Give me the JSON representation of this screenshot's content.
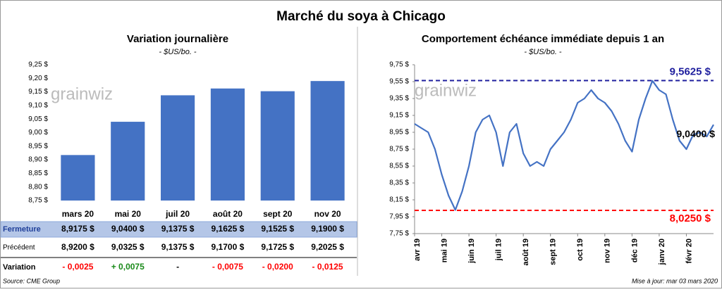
{
  "title": "Marché du soya à Chicago",
  "source": "Source: CME Group",
  "updated": "Mise à jour: mar 03 mars 2020",
  "chart_data": [
    {
      "type": "bar",
      "title": "Variation journalière",
      "subtitle": "- $US/bo. -",
      "watermark": "grainwiz",
      "categories": [
        "mars 20",
        "mai 20",
        "juil 20",
        "août 20",
        "sept 20",
        "nov 20"
      ],
      "values": [
        8.9175,
        9.04,
        9.1375,
        9.1625,
        9.1525,
        9.19
      ],
      "value_labels": [
        "8,9175 $",
        "9,0400 $",
        "9,1375 $",
        "9,1625 $",
        "9,1525 $",
        "9,1900 $"
      ],
      "color": "#4472c4",
      "ylim": [
        8.75,
        9.25
      ],
      "yticks": [
        {
          "value": 8.75,
          "label": "8,75 $"
        },
        {
          "value": 8.8,
          "label": "8,80 $"
        },
        {
          "value": 8.85,
          "label": "8,85 $"
        },
        {
          "value": 8.9,
          "label": "8,90 $"
        },
        {
          "value": 8.95,
          "label": "8,95 $"
        },
        {
          "value": 9.0,
          "label": "9,00 $"
        },
        {
          "value": 9.05,
          "label": "9,05 $"
        },
        {
          "value": 9.1,
          "label": "9,10 $"
        },
        {
          "value": 9.15,
          "label": "9,15 $"
        },
        {
          "value": 9.2,
          "label": "9,20 $"
        },
        {
          "value": 9.25,
          "label": "9,25 $"
        }
      ],
      "grid": false
    },
    {
      "type": "line",
      "title": "Comportement  échéance immédiate depuis 1 an",
      "subtitle": "- $US/bo. -",
      "watermark": "grainwiz",
      "categories": [
        "avr 19",
        null,
        null,
        null,
        "mai 19",
        null,
        null,
        null,
        "juin 19",
        null,
        null,
        null,
        "juil 19",
        null,
        null,
        null,
        "août 19",
        null,
        null,
        null,
        "sept 19",
        null,
        null,
        null,
        "oct 19",
        null,
        null,
        null,
        "nov 19",
        null,
        null,
        null,
        "déc 19",
        null,
        null,
        null,
        "janv 20",
        null,
        null,
        null,
        "févr 20",
        null,
        null,
        null,
        null
      ],
      "values": [
        9.05,
        9.0,
        8.95,
        8.75,
        8.45,
        8.2,
        8.03,
        8.25,
        8.55,
        8.95,
        9.1,
        9.15,
        8.95,
        8.55,
        8.95,
        9.05,
        8.7,
        8.55,
        8.6,
        8.55,
        8.75,
        8.85,
        8.95,
        9.1,
        9.3,
        9.35,
        9.45,
        9.35,
        9.3,
        9.2,
        9.05,
        8.85,
        8.72,
        9.1,
        9.35,
        9.56,
        9.45,
        9.4,
        9.1,
        8.85,
        8.75,
        8.92,
        8.95,
        8.9,
        9.04
      ],
      "value_labels": [
        null,
        null,
        null,
        null,
        null,
        null,
        null,
        null,
        null,
        null,
        null,
        null,
        null,
        null,
        null,
        null,
        null,
        null,
        null,
        null,
        null,
        null,
        null,
        null,
        null,
        null,
        null,
        null,
        null,
        null,
        null,
        null,
        null,
        null,
        null,
        null,
        null,
        null,
        null,
        null,
        null,
        null,
        null,
        null,
        "9,0400 $"
      ],
      "color": "#4472c4",
      "ylim": [
        7.75,
        9.75
      ],
      "yticks": [
        {
          "value": 7.75,
          "label": "7,75 $"
        },
        {
          "value": 7.95,
          "label": "7,95 $"
        },
        {
          "value": 8.15,
          "label": "8,15 $"
        },
        {
          "value": 8.35,
          "label": "8,35 $"
        },
        {
          "value": 8.55,
          "label": "8,55 $"
        },
        {
          "value": 8.75,
          "label": "8,75 $"
        },
        {
          "value": 8.95,
          "label": "8,95 $"
        },
        {
          "value": 9.15,
          "label": "9,15 $"
        },
        {
          "value": 9.35,
          "label": "9,35 $"
        },
        {
          "value": 9.55,
          "label": "9,55 $"
        },
        {
          "value": 9.75,
          "label": "9,75 $"
        }
      ],
      "reference_lines": [
        {
          "value": 9.5625,
          "label": "9,5625 $",
          "color": "#1f1f9e"
        },
        {
          "value": 8.025,
          "label": "8,0250 $",
          "color": "#ff0000"
        }
      ]
    }
  ],
  "table": {
    "rows": [
      {
        "label": "Fermeture"
      },
      {
        "label": "Précédent",
        "values": [
          "8,9200 $",
          "9,0325 $",
          "9,1375 $",
          "9,1700 $",
          "9,1725 $",
          "9,2025 $"
        ]
      },
      {
        "label": "Variation",
        "values": [
          "- 0,0025",
          "+ 0,0075",
          "-",
          "- 0,0075",
          "- 0,0200",
          "- 0,0125"
        ]
      }
    ]
  }
}
